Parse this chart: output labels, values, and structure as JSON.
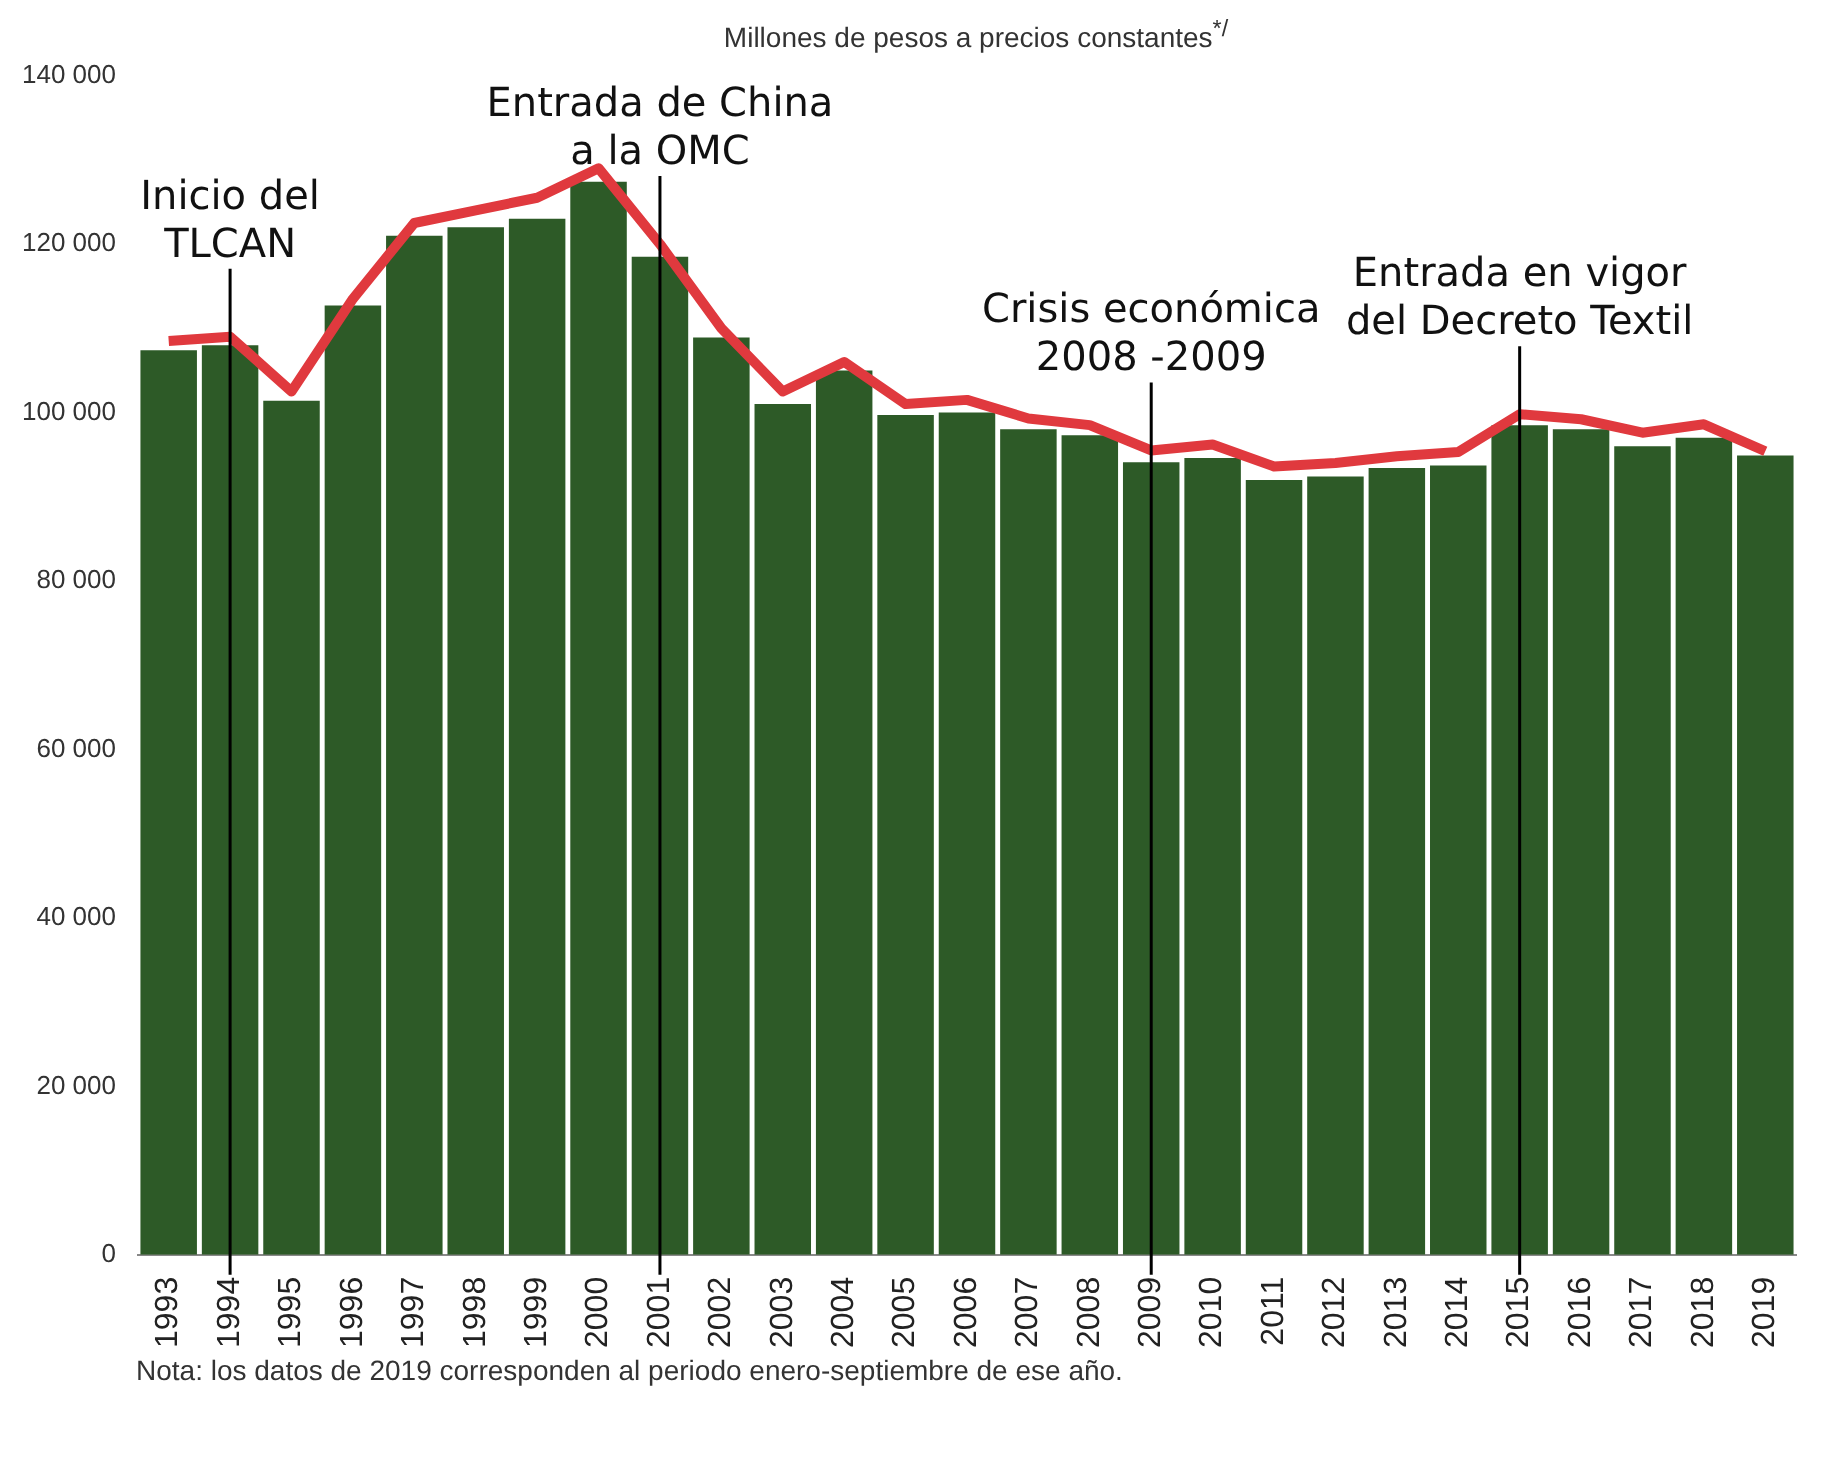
{
  "chart_data": {
    "type": "bar",
    "title": "Millones de pesos a precios constantes$^{*/}$",
    "categories": [
      "1993",
      "1994",
      "1995",
      "1996",
      "1997",
      "1998",
      "1999",
      "2000",
      "2001",
      "2002",
      "2003",
      "2004",
      "2005",
      "2006",
      "2007",
      "2008",
      "2009",
      "2010",
      "2011",
      "2012",
      "2013",
      "2014",
      "2015",
      "2016",
      "2017",
      "2018",
      "2019"
    ],
    "series": [
      {
        "color": "#2d5a27",
        "values": [
          107400,
          108000,
          101400,
          112700,
          121000,
          122000,
          123000,
          127400,
          118500,
          108900,
          101000,
          105000,
          99700,
          100000,
          98000,
          97300,
          94100,
          94600,
          92000,
          92400,
          93400,
          93700,
          98500,
          98000,
          96000,
          97000,
          94900
        ]
      },
      {
        "type": "line",
        "color": "#e0393e",
        "values": [
          108500,
          109000,
          102500,
          113500,
          122500,
          124000,
          125500,
          129000,
          120000,
          110000,
          102500,
          106000,
          101000,
          101500,
          99300,
          98500,
          95500,
          96200,
          93600,
          94000,
          94800,
          95300,
          99800,
          99200,
          97600,
          98600,
          95400
        ]
      }
    ],
    "ylim": [
      0,
      140000
    ],
    "yticks": [
      {
        "value": 0,
        "label": "0"
      },
      {
        "value": 20000,
        "label": "20 000"
      },
      {
        "value": 40000,
        "label": "40 000"
      },
      {
        "value": 60000,
        "label": "60 000"
      },
      {
        "value": 80000,
        "label": "80 000"
      },
      {
        "value": 100000,
        "label": "100 000"
      },
      {
        "value": 120000,
        "label": "120 000"
      },
      {
        "value": 140000,
        "label": "140 000"
      }
    ],
    "grid": false,
    "legend": false,
    "ref_lines": [
      {
        "axis": "x",
        "value": "1994",
        "label": "Inicio del\nTLCAN",
        "color": "#000000"
      },
      {
        "axis": "x",
        "value": "2001",
        "label": "Entrada de China\na la OMC",
        "color": "#000000"
      },
      {
        "axis": "x",
        "value": "2009",
        "label": "Crisis económica\n2008 -2009",
        "color": "#000000"
      },
      {
        "axis": "x",
        "value": "2015",
        "label": "Entrada en vigor\ndel Decreto Textil",
        "color": "#000000"
      }
    ],
    "annotations": [
      "Nota: los datos de 2019 corresponden al periodo enero-septiembre de ese año."
    ]
  }
}
